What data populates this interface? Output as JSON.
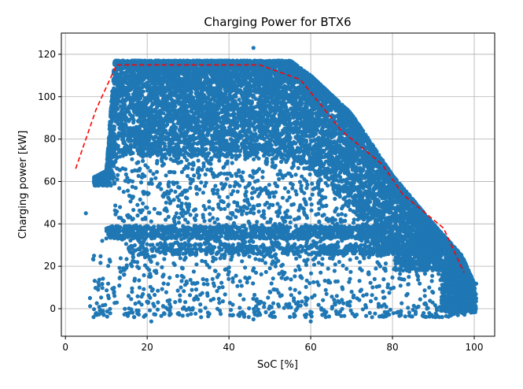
{
  "chart_data": {
    "type": "scatter",
    "title": "Charging Power for BTX6",
    "xlabel": "SoC [%]",
    "ylabel": "Charging power [kW]",
    "xlim": [
      -1,
      105
    ],
    "ylim": [
      -13,
      130
    ],
    "xticks": [
      0,
      20,
      40,
      60,
      80,
      100
    ],
    "yticks": [
      0,
      20,
      40,
      60,
      80,
      100,
      120
    ],
    "grid": true,
    "legend": "none",
    "colors": {
      "scatter": "#1f77b4",
      "reference": "#ff0000"
    },
    "series": [
      {
        "kind": "scatter",
        "envelope": [
          [
            7,
            62
          ],
          [
            10,
            65
          ],
          [
            12,
            117
          ],
          [
            55,
            117
          ],
          [
            60,
            110
          ],
          [
            70,
            92
          ],
          [
            80,
            63
          ],
          [
            90,
            40
          ],
          [
            97,
            25
          ],
          [
            100,
            12
          ],
          [
            100,
            -2
          ],
          [
            7,
            -2
          ]
        ],
        "sample_points": [
          [
            5,
            45
          ],
          [
            6,
            5
          ],
          [
            7,
            25
          ],
          [
            8,
            9
          ],
          [
            9,
            32
          ],
          [
            12,
            6
          ],
          [
            15,
            20
          ],
          [
            18,
            3
          ],
          [
            21,
            -6
          ],
          [
            24,
            16
          ],
          [
            28,
            4
          ],
          [
            33,
            2
          ],
          [
            36,
            14
          ],
          [
            41,
            -3
          ],
          [
            46,
            -5
          ],
          [
            50,
            8
          ],
          [
            54,
            2
          ],
          [
            57,
            20
          ],
          [
            60,
            -6
          ],
          [
            63,
            4
          ],
          [
            66,
            2
          ],
          [
            70,
            8
          ],
          [
            75,
            -4
          ],
          [
            78,
            2
          ],
          [
            82,
            -2
          ],
          [
            86,
            16
          ],
          [
            89,
            10
          ],
          [
            92,
            -1
          ],
          [
            94,
            12
          ],
          [
            96,
            -3
          ],
          [
            98,
            2
          ],
          [
            99,
            0
          ],
          [
            46,
            123
          ],
          [
            59,
            31
          ],
          [
            63,
            27
          ],
          [
            68,
            25
          ],
          [
            72,
            22
          ],
          [
            77,
            20
          ],
          [
            84,
            15
          ]
        ]
      },
      {
        "kind": "line",
        "style": "dashed",
        "x": [
          2.5,
          7.5,
          12.5,
          17.5,
          27.5,
          37.5,
          47.5,
          57.5,
          62.5,
          67.5,
          72.5,
          77.5,
          82.5,
          87.5,
          92.5,
          97.5
        ],
        "y": [
          66,
          94,
          115,
          115,
          115,
          115,
          115,
          108,
          96,
          84,
          76,
          68,
          54,
          46,
          38,
          17
        ]
      }
    ]
  }
}
